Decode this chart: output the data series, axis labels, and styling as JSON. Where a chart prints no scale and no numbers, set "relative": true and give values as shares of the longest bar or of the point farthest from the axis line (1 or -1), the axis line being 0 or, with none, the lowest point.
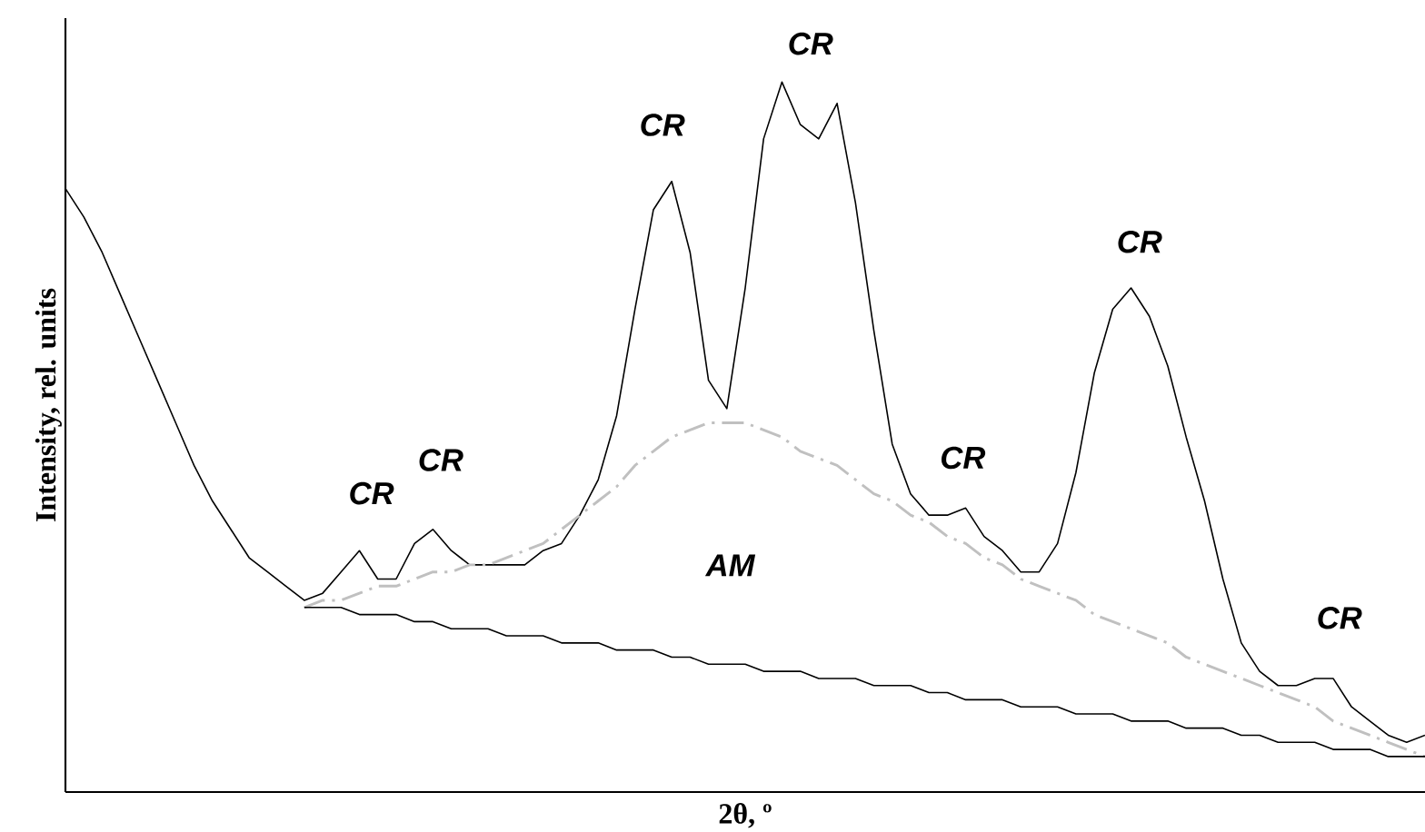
{
  "chart_data": {
    "type": "line",
    "relative": true,
    "xlabel": "2θ, º",
    "ylabel": "Intensity, rel. units",
    "categories": [
      null,
      null,
      null,
      null,
      null,
      null,
      null,
      null,
      null,
      null,
      null,
      null,
      null,
      null,
      null,
      null,
      null,
      null,
      null,
      null,
      null,
      null,
      null,
      null,
      null,
      null,
      null,
      null,
      null,
      null,
      null,
      null,
      null,
      null,
      null,
      null,
      null,
      null,
      null,
      null,
      null,
      null,
      null,
      null,
      null,
      null,
      null,
      null,
      null,
      null,
      null,
      null,
      null,
      null,
      null,
      null,
      null,
      null,
      null,
      null,
      null,
      null,
      null,
      null,
      null,
      null,
      null,
      null,
      null,
      null,
      null,
      null,
      null,
      null,
      null
    ],
    "series": [
      {
        "color": "#000000",
        "values": [
          0.85,
          0.81,
          0.76,
          0.7,
          0.64,
          0.58,
          0.52,
          0.46,
          0.41,
          0.37,
          0.33,
          0.31,
          0.29,
          0.27,
          0.28,
          0.31,
          0.34,
          0.3,
          0.3,
          0.35,
          0.37,
          0.34,
          0.32,
          0.32,
          0.32,
          0.32,
          0.34,
          0.35,
          0.39,
          0.44,
          0.53,
          0.68,
          0.82,
          0.86,
          0.76,
          0.58,
          0.54,
          0.71,
          0.92,
          1.0,
          0.94,
          0.92,
          0.97,
          0.83,
          0.65,
          0.49,
          0.42,
          0.39,
          0.39,
          0.4,
          0.36,
          0.34,
          0.31,
          0.31,
          0.35,
          0.45,
          0.59,
          0.68,
          0.71,
          0.67,
          0.6,
          0.5,
          0.41,
          0.3,
          0.21,
          0.17,
          0.15,
          0.15,
          0.16,
          0.16,
          0.12,
          0.1,
          0.08,
          0.07,
          0.08
        ]
      },
      {
        "color": "#c0c0c0",
        "line_style": "dashed",
        "values": [
          null,
          null,
          null,
          null,
          null,
          null,
          null,
          null,
          null,
          null,
          null,
          null,
          null,
          0.26,
          0.27,
          0.27,
          0.28,
          0.29,
          0.29,
          0.3,
          0.31,
          0.31,
          0.32,
          0.32,
          0.33,
          0.34,
          0.35,
          0.37,
          0.39,
          0.41,
          0.43,
          0.46,
          0.48,
          0.5,
          0.51,
          0.52,
          0.52,
          0.52,
          0.51,
          0.5,
          0.48,
          0.47,
          0.46,
          0.44,
          0.42,
          0.41,
          0.39,
          0.38,
          0.36,
          0.35,
          0.33,
          0.32,
          0.3,
          0.29,
          0.28,
          0.27,
          0.25,
          0.24,
          0.23,
          0.22,
          0.21,
          0.19,
          0.18,
          0.17,
          0.16,
          0.15,
          0.14,
          0.13,
          0.12,
          0.1,
          0.09,
          0.08,
          0.07,
          0.06,
          0.05
        ]
      },
      {
        "color": "#000000",
        "values": [
          null,
          null,
          null,
          null,
          null,
          null,
          null,
          null,
          null,
          null,
          null,
          null,
          null,
          0.26,
          0.26,
          0.26,
          0.25,
          0.25,
          0.25,
          0.24,
          0.24,
          0.23,
          0.23,
          0.23,
          0.22,
          0.22,
          0.22,
          0.21,
          0.21,
          0.21,
          0.2,
          0.2,
          0.2,
          0.19,
          0.19,
          0.18,
          0.18,
          0.18,
          0.17,
          0.17,
          0.17,
          0.16,
          0.16,
          0.16,
          0.15,
          0.15,
          0.15,
          0.14,
          0.14,
          0.13,
          0.13,
          0.13,
          0.12,
          0.12,
          0.12,
          0.11,
          0.11,
          0.11,
          0.1,
          0.1,
          0.1,
          0.09,
          0.09,
          0.09,
          0.08,
          0.08,
          0.07,
          0.07,
          0.07,
          0.06,
          0.06,
          0.06,
          0.05,
          0.05,
          0.05
        ]
      }
    ],
    "annotations": [
      "CR",
      "CR",
      "CR",
      "CR",
      "CR",
      "CR",
      "CR",
      "AM"
    ]
  }
}
